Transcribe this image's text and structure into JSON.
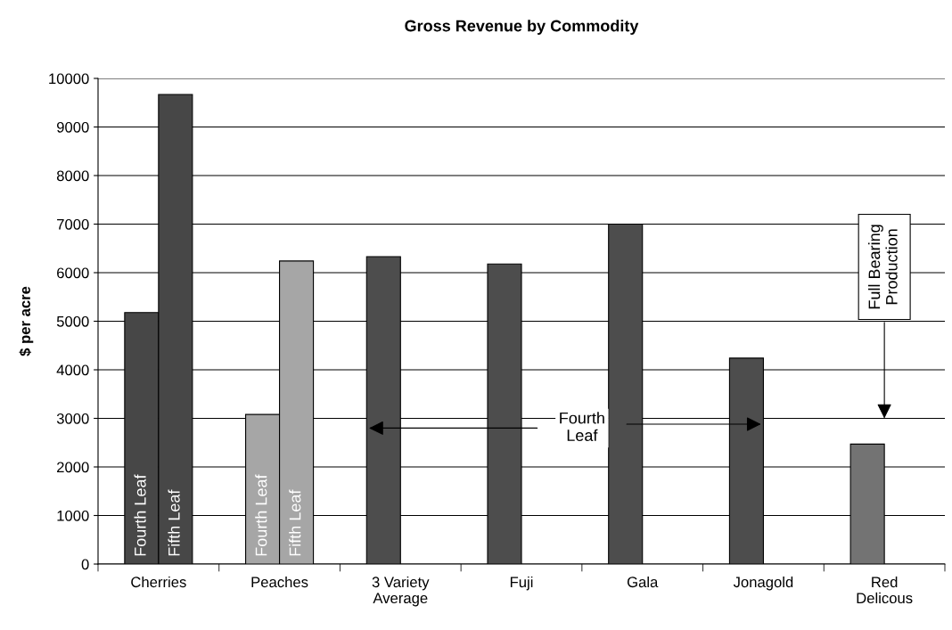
{
  "chart_data": {
    "type": "bar",
    "title": "Gross Revenue by Commodity",
    "ylabel": "$ per acre",
    "categories": [
      "Cherries",
      "Peaches",
      "3 Variety Average",
      "Fuji",
      "Gala",
      "Jonagold",
      "Red Delicous"
    ],
    "series": [
      {
        "colors": [
          "#474747",
          "#a6a6a6",
          "#4d4d4d",
          "#4d4d4d",
          "#4d4d4d",
          "#4d4d4d",
          "#737373"
        ],
        "values": [
          5180,
          3080,
          6330,
          6180,
          7000,
          4240,
          2470
        ]
      },
      {
        "colors": [
          "#474747",
          "#a6a6a6",
          null,
          null,
          null,
          null,
          null
        ],
        "values": [
          9670,
          6240,
          null,
          null,
          null,
          null,
          null
        ]
      }
    ],
    "ylim": [
      0,
      10000
    ],
    "yticks": [
      0,
      1000,
      2000,
      3000,
      4000,
      5000,
      6000,
      7000,
      8000,
      9000,
      10000
    ],
    "grid": "y",
    "legend": false,
    "annotations": [
      "Fourth Leaf",
      "Fifth Leaf",
      "Fourth Leaf",
      "Fifth Leaf",
      "Fourth Leaf",
      "Full Bearing Production"
    ]
  }
}
